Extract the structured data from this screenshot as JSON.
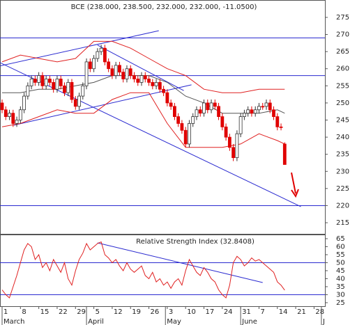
{
  "chart_data": [
    {
      "type": "candlestick",
      "title": "BCE (238.000, 238.500, 232.000, 232.000, -11.0500)",
      "x": [
        0,
        1,
        2,
        3,
        4,
        5,
        6,
        7,
        8,
        9,
        10,
        11,
        12,
        13,
        14,
        15,
        16,
        17,
        18,
        19,
        20,
        21,
        22,
        23,
        24,
        25,
        26,
        27,
        28,
        29,
        30,
        31,
        32,
        33,
        34,
        35,
        36,
        37,
        38,
        39,
        40,
        41,
        42,
        43,
        44,
        45,
        46,
        47,
        48,
        49,
        50,
        51,
        52,
        53,
        54,
        55,
        56,
        57,
        58,
        59,
        60,
        61,
        62,
        63,
        64,
        65,
        66,
        67,
        68,
        69,
        70,
        71,
        72,
        73,
        74,
        75,
        76,
        77
      ],
      "open": [
        250,
        248,
        246,
        247,
        244,
        245,
        248,
        252,
        255,
        257,
        256,
        258,
        255,
        257,
        256,
        254,
        257,
        255,
        253,
        256,
        251,
        249,
        252,
        255,
        262,
        260,
        263,
        265,
        266,
        262,
        260,
        258,
        261,
        259,
        257,
        260,
        258,
        257,
        256,
        258,
        257,
        256,
        255,
        256,
        254,
        253,
        250,
        249,
        246,
        244,
        242,
        238,
        244,
        246,
        248,
        247,
        250,
        248,
        250,
        249,
        246,
        243,
        240,
        237,
        234,
        241,
        246,
        247,
        248,
        247,
        248,
        249,
        249,
        250,
        248,
        246,
        243,
        238
      ],
      "high": [
        251,
        249,
        248,
        248,
        246,
        249,
        253,
        256,
        258,
        258,
        259,
        259,
        258,
        258,
        257,
        258,
        258,
        256,
        257,
        257,
        252,
        253,
        256,
        263,
        263,
        264,
        266,
        267,
        267,
        263,
        261,
        262,
        262,
        260,
        261,
        261,
        259,
        258,
        259,
        259,
        258,
        257,
        257,
        257,
        255,
        254,
        251,
        250,
        247,
        245,
        243,
        245,
        247,
        249,
        249,
        251,
        251,
        251,
        251,
        250,
        247,
        244,
        241,
        238,
        242,
        247,
        248,
        249,
        249,
        249,
        250,
        250,
        251,
        251,
        249,
        247,
        244,
        238.5
      ],
      "low": [
        247,
        245,
        245,
        243,
        243,
        244,
        247,
        251,
        254,
        255,
        255,
        254,
        254,
        255,
        253,
        253,
        254,
        252,
        252,
        250,
        248,
        248,
        251,
        254,
        259,
        259,
        262,
        264,
        261,
        259,
        257,
        257,
        258,
        256,
        256,
        257,
        256,
        255,
        255,
        256,
        255,
        254,
        254,
        253,
        252,
        249,
        248,
        245,
        243,
        241,
        237,
        237,
        243,
        245,
        246,
        246,
        247,
        247,
        248,
        245,
        242,
        239,
        236,
        233,
        233,
        240,
        245,
        246,
        246,
        246,
        247,
        248,
        248,
        247,
        245,
        242,
        242,
        232
      ],
      "close": [
        248,
        246,
        247,
        244,
        245,
        248,
        252,
        255,
        257,
        256,
        258,
        255,
        257,
        256,
        254,
        257,
        255,
        253,
        256,
        251,
        249,
        252,
        255,
        262,
        260,
        263,
        265,
        266,
        262,
        260,
        258,
        261,
        259,
        257,
        260,
        258,
        257,
        256,
        258,
        257,
        256,
        255,
        256,
        254,
        253,
        250,
        249,
        246,
        244,
        242,
        238,
        244,
        246,
        248,
        247,
        250,
        248,
        250,
        249,
        246,
        243,
        240,
        237,
        234,
        241,
        246,
        247,
        248,
        247,
        248,
        249,
        249,
        250,
        248,
        246,
        243,
        243,
        232
      ],
      "up_color": "#ffffff",
      "down_color": "#e00000",
      "bands": {
        "x": [
          0,
          5,
          10,
          15,
          20,
          25,
          30,
          35,
          40,
          45,
          50,
          55,
          60,
          65,
          70,
          75,
          77
        ],
        "upper": [
          262,
          264,
          263,
          262,
          263,
          268,
          268,
          266,
          263,
          260,
          258,
          254,
          253,
          253,
          254,
          254,
          254
        ],
        "middle": [
          253,
          253,
          254,
          254,
          255,
          256,
          258,
          258,
          258,
          256,
          252,
          250,
          247,
          247,
          247,
          248,
          247
        ],
        "lower": [
          243,
          244,
          246,
          248,
          247,
          247,
          251,
          253,
          253,
          244,
          237,
          237,
          237,
          238,
          241,
          239,
          238
        ],
        "band_color": "#e02020",
        "middle_color": "#555555"
      },
      "trend_lines": [
        [
          -0.6,
          260.8,
          42.7,
          271.1
        ],
        [
          -0.6,
          261.8,
          81.4,
          219.7
        ],
        [
          3.2,
          243.5,
          51.6,
          255.3
        ],
        [
          26,
          266.9,
          49.5,
          253.6
        ]
      ],
      "trend_color": "#2a2ad0",
      "h_lines": [
        269,
        258,
        220
      ],
      "xlim": [
        -0.57,
        87.96
      ],
      "ylim": [
        211.55,
        280.08
      ],
      "yticks": [
        215,
        220,
        225,
        230,
        235,
        240,
        245,
        250,
        255,
        260,
        265,
        270,
        275
      ]
    },
    {
      "type": "line",
      "title": "Relative Strength Index (32.8408)",
      "x": [
        0,
        1,
        2,
        3,
        4,
        5,
        6,
        7,
        8,
        9,
        10,
        11,
        12,
        13,
        14,
        15,
        16,
        17,
        18,
        19,
        20,
        21,
        22,
        23,
        24,
        25,
        26,
        27,
        28,
        29,
        30,
        31,
        32,
        33,
        34,
        35,
        36,
        37,
        38,
        39,
        40,
        41,
        42,
        43,
        44,
        45,
        46,
        47,
        48,
        49,
        50,
        51,
        52,
        53,
        54,
        55,
        56,
        57,
        58,
        59,
        60,
        61,
        62,
        63,
        64,
        65,
        66,
        67,
        68,
        69,
        70,
        71,
        72,
        73,
        74,
        75,
        76,
        77
      ],
      "values": [
        33,
        30,
        28,
        35,
        42,
        50,
        58,
        62,
        60,
        52,
        55,
        47,
        50,
        45,
        52,
        48,
        44,
        50,
        40,
        36,
        45,
        52,
        56,
        62,
        58,
        60,
        62,
        63,
        55,
        53,
        50,
        52,
        48,
        45,
        50,
        46,
        44,
        46,
        48,
        42,
        40,
        44,
        38,
        40,
        36,
        38,
        34,
        38,
        40,
        36,
        45,
        52,
        48,
        44,
        42,
        47,
        44,
        40,
        38,
        33,
        30,
        28,
        36,
        50,
        54,
        52,
        48,
        50,
        53,
        51,
        52,
        50,
        48,
        46,
        44,
        38,
        36,
        32.8408
      ],
      "color": "#e02020",
      "h_lines": [
        50,
        30
      ],
      "trend_lines": [
        [
          26,
          62.4,
          71,
          37.6
        ]
      ],
      "trend_color": "#2a2ad0",
      "xlim": [
        -0.57,
        87.96
      ],
      "ylim": [
        22.8,
        67.6
      ],
      "yticks": [
        25,
        30,
        35,
        40,
        45,
        50,
        55,
        60,
        65
      ],
      "xticks": [
        {
          "value": 0,
          "label": "1"
        },
        {
          "value": 5,
          "label": "8"
        },
        {
          "value": 10,
          "label": "15"
        },
        {
          "value": 15,
          "label": "22"
        },
        {
          "value": 20,
          "label": "29"
        },
        {
          "value": 25,
          "label": "5"
        },
        {
          "value": 30,
          "label": "12"
        },
        {
          "value": 35,
          "label": "19"
        },
        {
          "value": 40,
          "label": "26"
        },
        {
          "value": 45,
          "label": "3"
        },
        {
          "value": 50,
          "label": "10"
        },
        {
          "value": 55,
          "label": "17"
        },
        {
          "value": 60,
          "label": "24"
        },
        {
          "value": 65,
          "label": "31"
        },
        {
          "value": 70,
          "label": "7"
        },
        {
          "value": 75,
          "label": "14"
        },
        {
          "value": 80,
          "label": "21"
        },
        {
          "value": 85,
          "label": "28"
        }
      ],
      "months": [
        {
          "value": 0,
          "label": "March"
        },
        {
          "value": 23,
          "label": "April"
        },
        {
          "value": 44.5,
          "label": "May"
        },
        {
          "value": 65,
          "label": "June"
        },
        {
          "value": 87,
          "label": "J"
        }
      ]
    }
  ]
}
